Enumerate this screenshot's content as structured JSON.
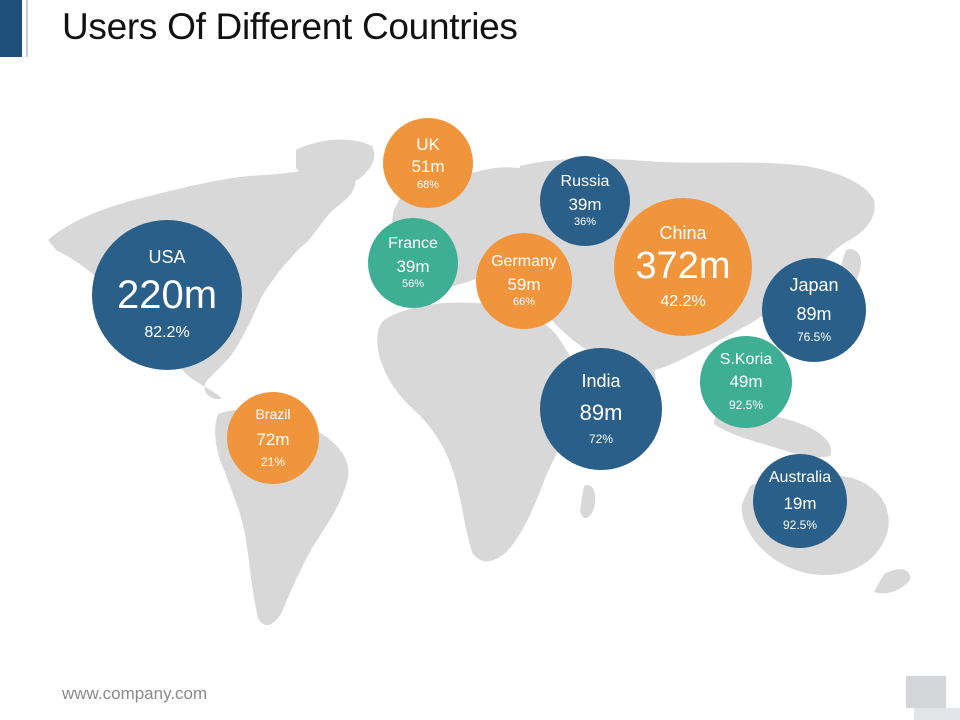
{
  "slide": {
    "title": "Users Of Different Countries",
    "footer": "www.company.com"
  },
  "colors": {
    "blue": "#2a5f8a",
    "orange": "#f0953b",
    "teal": "#3eae94",
    "map": "#d8d8d8"
  },
  "countries": [
    {
      "name": "UK",
      "users": "51m",
      "share": "68%",
      "color": "orange"
    },
    {
      "name": "Russia",
      "users": "39m",
      "share": "36%",
      "color": "blue"
    },
    {
      "name": "France",
      "users": "39m",
      "share": "56%",
      "color": "teal"
    },
    {
      "name": "Germany",
      "users": "59m",
      "share": "66%",
      "color": "orange"
    },
    {
      "name": "China",
      "users": "372m",
      "share": "42.2%",
      "color": "orange"
    },
    {
      "name": "USA",
      "users": "220m",
      "share": "82.2%",
      "color": "blue"
    },
    {
      "name": "Japan",
      "users": "89m",
      "share": "76.5%",
      "color": "blue"
    },
    {
      "name": "S.Koria",
      "users": "49m",
      "share": "92.5%",
      "color": "teal"
    },
    {
      "name": "India",
      "users": "89m",
      "share": "72%",
      "color": "blue"
    },
    {
      "name": "Brazil",
      "users": "72m",
      "share": "21%",
      "color": "orange"
    },
    {
      "name": "Australia",
      "users": "19m",
      "share": "92.5%",
      "color": "blue"
    }
  ]
}
